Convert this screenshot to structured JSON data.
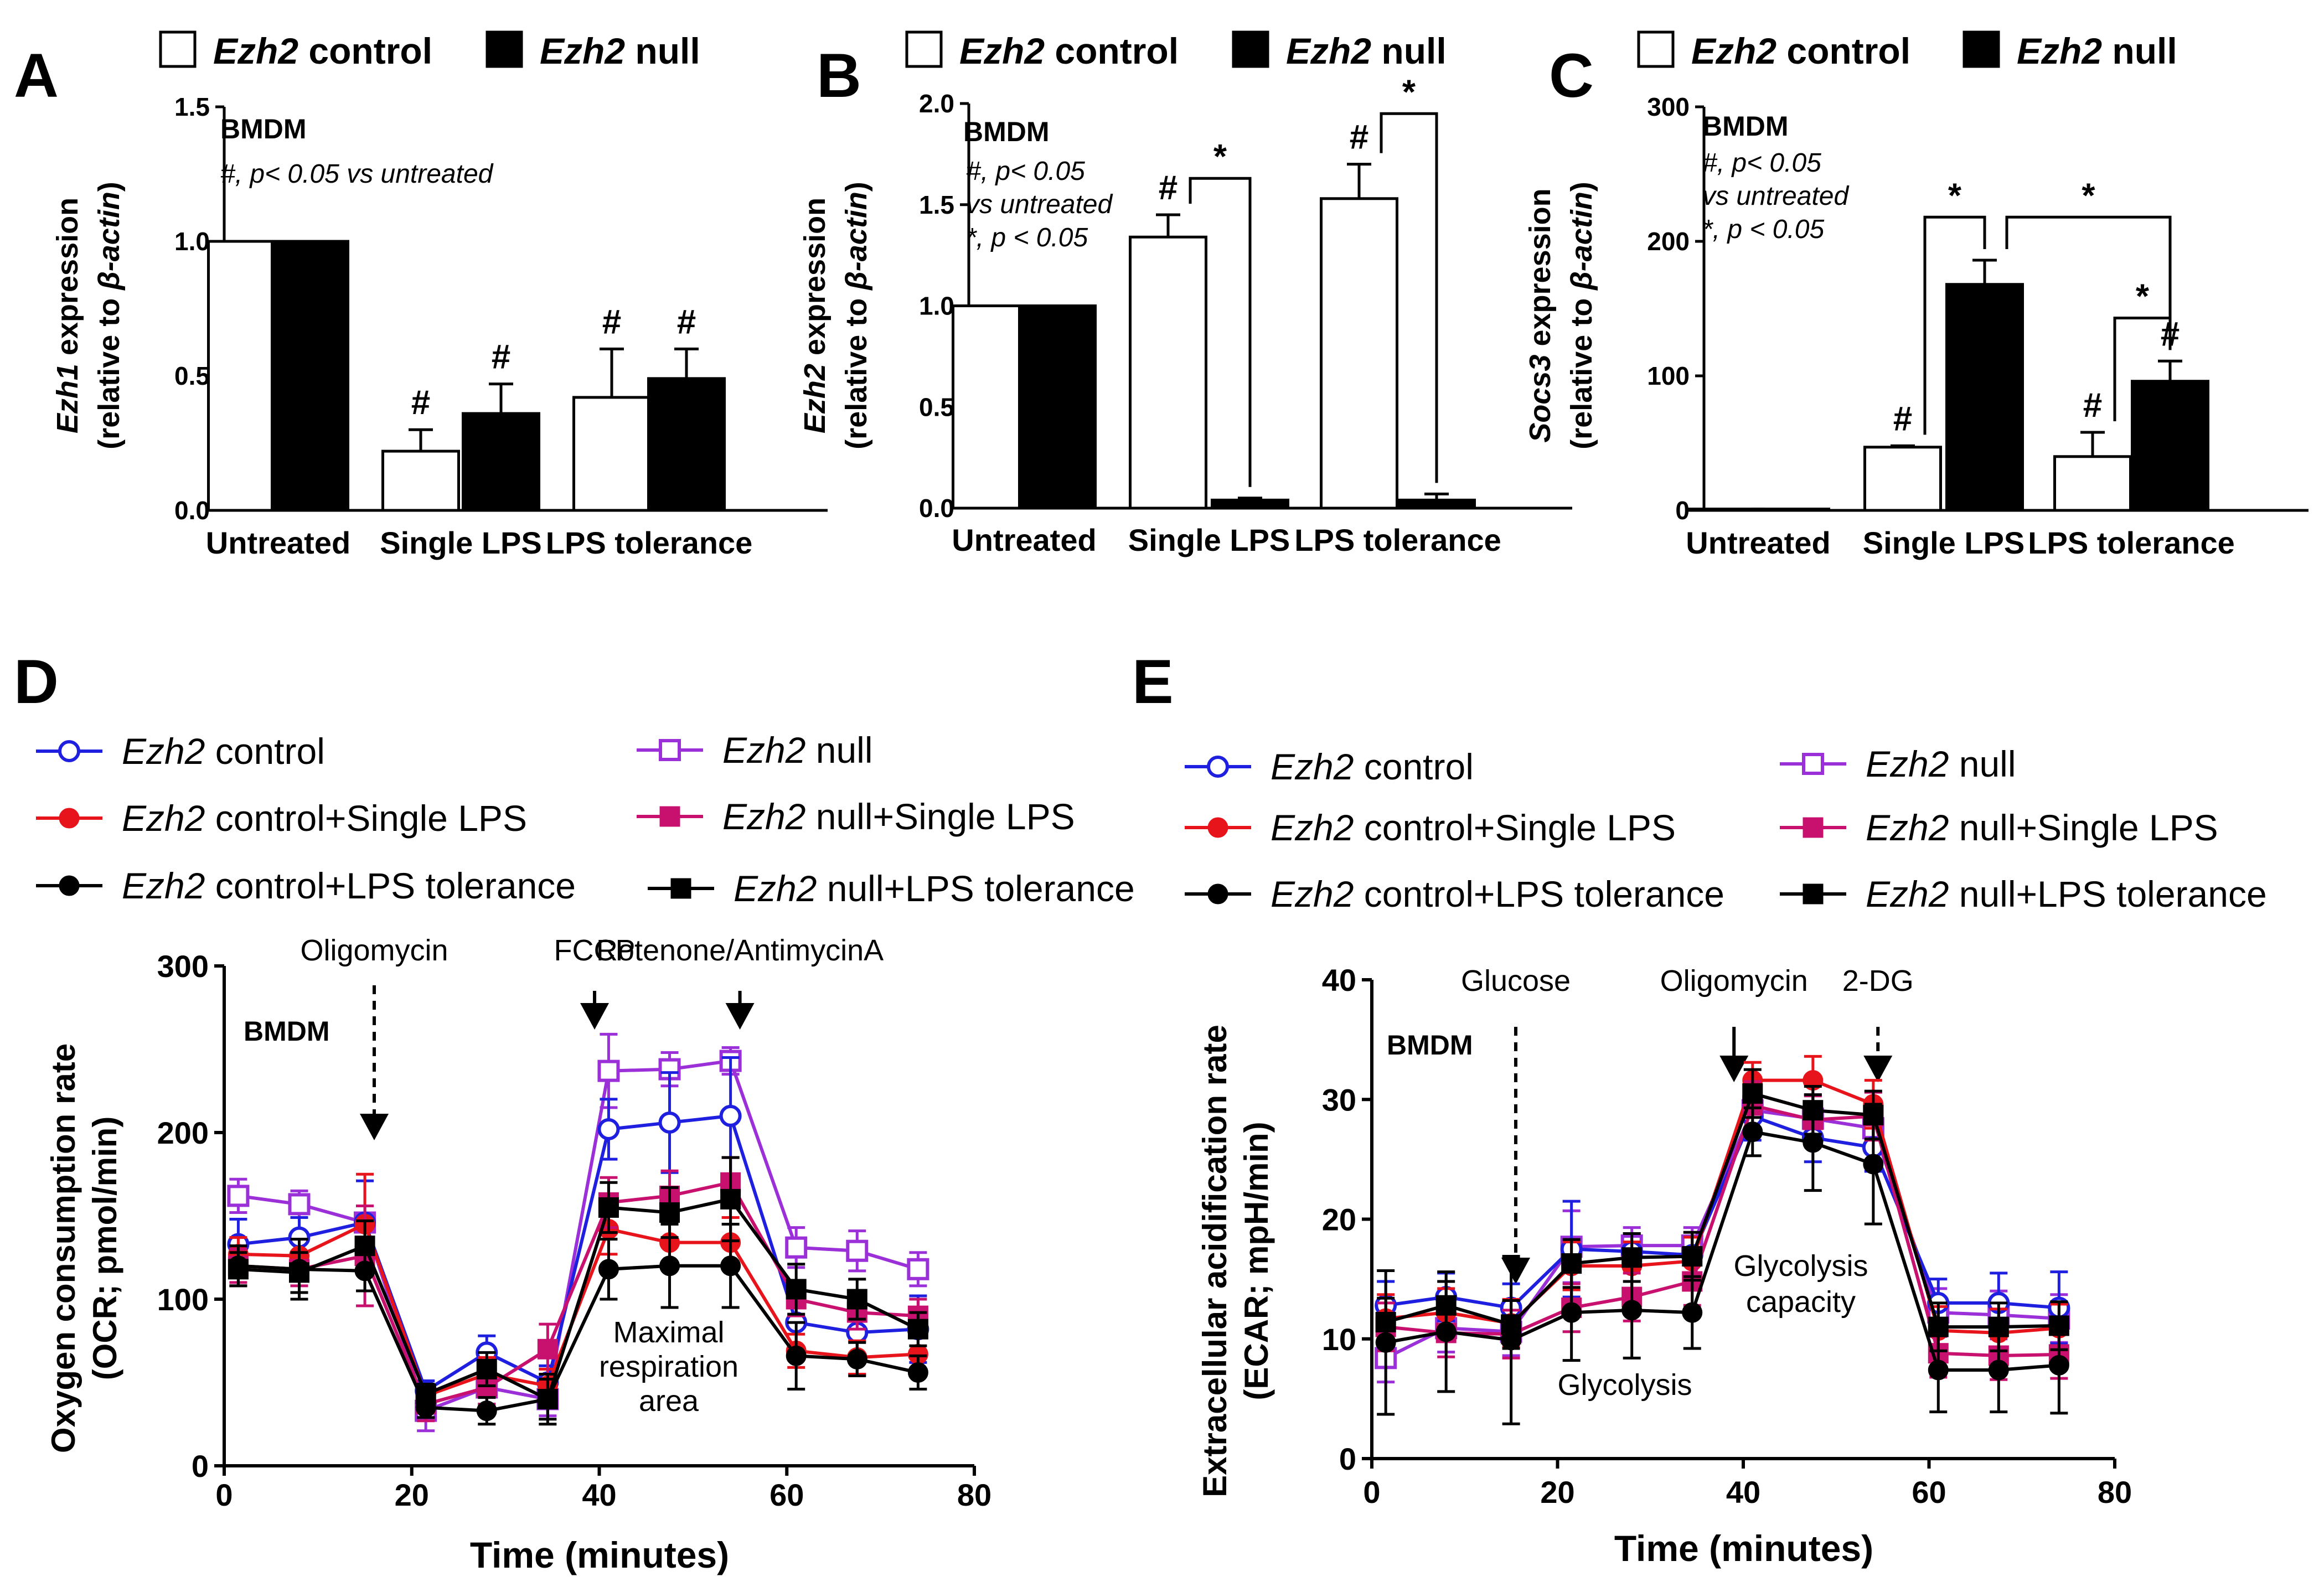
{
  "legend_top": {
    "gene": "Ezh2",
    "control": "control",
    "null": "null"
  },
  "chart_data": [
    {
      "panel": "A",
      "type": "bar",
      "ylabel_gene": "Ezh1",
      "ylabel_rest": " expression",
      "ylabel2_prefix": "(relative to ",
      "ylabel2_gene": "β-actin",
      "ylabel2_suffix": ")",
      "ylim": [
        0,
        1.5
      ],
      "yticks": [
        "0.0",
        "0.5",
        "1.0",
        "1.5"
      ],
      "tick_values": [
        0,
        0.5,
        1.0,
        1.5
      ],
      "categories": [
        "Untreated",
        "Single LPS",
        "LPS tolerance"
      ],
      "series": [
        {
          "name": "Ezh2 control",
          "values": [
            1.0,
            0.22,
            0.42
          ],
          "errors": [
            0,
            0.08,
            0.18
          ]
        },
        {
          "name": "Ezh2 null",
          "values": [
            1.0,
            0.36,
            0.49
          ],
          "errors": [
            0,
            0.11,
            0.11
          ]
        }
      ],
      "annot_title": "BMDM",
      "annot_lines": [
        "#, p< 0.05  vs untreated"
      ],
      "hash": "#",
      "star": "*"
    },
    {
      "panel": "B",
      "type": "bar",
      "ylabel_gene": "Ezh2",
      "ylabel_rest": " expression",
      "ylabel2_prefix": "(relative to ",
      "ylabel2_gene": "β-actin",
      "ylabel2_suffix": ")",
      "ylim": [
        0,
        2.0
      ],
      "yticks": [
        "0.0",
        "0.5",
        "1.0",
        "1.5",
        "2.0"
      ],
      "tick_values": [
        0,
        0.5,
        1.0,
        1.5,
        2.0
      ],
      "categories": [
        "Untreated",
        "Single LPS",
        "LPS tolerance"
      ],
      "series": [
        {
          "name": "Ezh2 control",
          "values": [
            1.0,
            1.34,
            1.53
          ],
          "errors": [
            0,
            0.11,
            0.17
          ]
        },
        {
          "name": "Ezh2 null",
          "values": [
            1.0,
            0.04,
            0.04
          ],
          "errors": [
            0,
            0.01,
            0.03
          ]
        }
      ],
      "annot_title": "BMDM",
      "annot_lines": [
        "#, p< 0.05",
        "vs untreated",
        "*, p < 0.05"
      ],
      "hash": "#",
      "star": "*"
    },
    {
      "panel": "C",
      "type": "bar",
      "ylabel_gene": "Socs3",
      "ylabel_rest": " expression",
      "ylabel2_prefix": "(relative to ",
      "ylabel2_gene": "β-actin",
      "ylabel2_suffix": ")",
      "ylim": [
        0,
        300
      ],
      "yticks": [
        "0",
        "100",
        "200",
        "300"
      ],
      "tick_values": [
        0,
        100,
        200,
        300
      ],
      "categories": [
        "Untreated",
        "Single LPS",
        "LPS tolerance"
      ],
      "series": [
        {
          "name": "Ezh2 control",
          "values": [
            1,
            47,
            40
          ],
          "errors": [
            0,
            1,
            18
          ]
        },
        {
          "name": "Ezh2 null",
          "values": [
            1,
            168,
            96
          ],
          "errors": [
            0,
            18,
            15
          ]
        }
      ],
      "annot_title": "BMDM",
      "annot_lines": [
        "#, p< 0.05",
        "vs untreated",
        "*, p < 0.05"
      ],
      "hash": "#",
      "star": "*"
    },
    {
      "panel": "D",
      "type": "line",
      "ylabel": "Oxygen consumption rate",
      "ylabel2": "(OCR; pmol/min)",
      "xlabel": "Time (minutes)",
      "xlim": [
        0,
        80
      ],
      "ylim": [
        0,
        300
      ],
      "xticks": [
        "0",
        "20",
        "40",
        "60",
        "80"
      ],
      "xtick_values": [
        0,
        20,
        40,
        60,
        80
      ],
      "yticks": [
        "0",
        "100",
        "200",
        "300"
      ],
      "ytick_values": [
        0,
        100,
        200,
        300
      ],
      "x": [
        1.5,
        8,
        15,
        21.5,
        28,
        34.5,
        41,
        47.5,
        54,
        61,
        67.5,
        74
      ],
      "series": [
        {
          "name": "Ezh2 control",
          "values": [
            133,
            137,
            146,
            45,
            68,
            50,
            202,
            206,
            210,
            86,
            80,
            82
          ],
          "errors": [
            15,
            12,
            25,
            6,
            10,
            10,
            18,
            30,
            35,
            15,
            25,
            20
          ]
        },
        {
          "name": "Ezh2 control+Single LPS",
          "values": [
            127,
            126,
            145,
            42,
            55,
            48,
            142,
            134,
            134,
            69,
            65,
            67
          ],
          "errors": [
            10,
            10,
            30,
            6,
            10,
            10,
            15,
            15,
            15,
            10,
            10,
            10
          ]
        },
        {
          "name": "Ezh2 control+LPS tolerance",
          "values": [
            120,
            118,
            117,
            35,
            33,
            40,
            118,
            120,
            120,
            66,
            64,
            56
          ],
          "errors": [
            12,
            18,
            12,
            6,
            8,
            15,
            18,
            25,
            25,
            20,
            10,
            10
          ]
        },
        {
          "name": "Ezh2 null",
          "values": [
            162,
            157,
            146,
            33,
            47,
            40,
            237,
            238,
            243,
            131,
            129,
            118
          ],
          "errors": [
            10,
            8,
            10,
            12,
            10,
            10,
            22,
            10,
            8,
            12,
            12,
            10
          ]
        },
        {
          "name": "Ezh2 null+Single LPS",
          "values": [
            120,
            118,
            126,
            37,
            47,
            70,
            158,
            162,
            170,
            100,
            92,
            90
          ],
          "errors": [
            10,
            10,
            30,
            10,
            10,
            15,
            15,
            15,
            15,
            10,
            10,
            10
          ]
        },
        {
          "name": "Ezh2 null+LPS tolerance",
          "values": [
            118,
            116,
            132,
            43,
            58,
            40,
            155,
            152,
            160,
            106,
            100,
            82
          ],
          "errors": [
            10,
            12,
            15,
            6,
            10,
            12,
            15,
            15,
            25,
            15,
            12,
            10
          ]
        }
      ],
      "arrows": [
        {
          "label": "Oligomycin",
          "x": 16,
          "style": "dashed"
        },
        {
          "label": "FCCP",
          "x": 39.5,
          "style": "solid"
        },
        {
          "label": "Rotenone/AntimycinA",
          "x": 55,
          "style": "solid"
        }
      ],
      "notes": [
        "Maximal",
        "respiration",
        "area"
      ],
      "bmdm": "BMDM"
    },
    {
      "panel": "E",
      "type": "line",
      "ylabel": "Extracellular acidification rate",
      "ylabel2": "(ECAR; mpH/min)",
      "xlabel": "Time (minutes)",
      "xlim": [
        0,
        80
      ],
      "ylim": [
        0,
        40
      ],
      "xticks": [
        "0",
        "20",
        "40",
        "60",
        "80"
      ],
      "xtick_values": [
        0,
        20,
        40,
        60,
        80
      ],
      "yticks": [
        "0",
        "10",
        "20",
        "30",
        "40"
      ],
      "ytick_values": [
        0,
        10,
        20,
        30,
        40
      ],
      "x": [
        1.5,
        8,
        15,
        21.5,
        28,
        34.5,
        41,
        47.5,
        54,
        61,
        67.5,
        74
      ],
      "series": [
        {
          "name": "Ezh2 control",
          "values": [
            12.8,
            13.5,
            12.6,
            17.5,
            17.3,
            17.0,
            28.6,
            26.8,
            26.0,
            13.0,
            13.0,
            12.6
          ],
          "errors": [
            2,
            2,
            2,
            4,
            1.5,
            1.5,
            2,
            2,
            2,
            2,
            2.5,
            3
          ]
        },
        {
          "name": "Ezh2 control+Single LPS",
          "values": [
            11.7,
            12.2,
            11.3,
            16.1,
            16.1,
            16.5,
            31.6,
            31.6,
            29.6,
            10.7,
            10.5,
            10.9
          ],
          "errors": [
            2,
            2,
            2,
            2,
            2,
            2,
            1.5,
            2,
            2,
            2,
            2,
            2
          ]
        },
        {
          "name": "Ezh2 control+LPS tolerance",
          "values": [
            9.7,
            10.6,
            9.9,
            12.2,
            12.4,
            12.2,
            27.3,
            26.4,
            24.6,
            7.4,
            7.4,
            7.8
          ],
          "errors": [
            6,
            5,
            7,
            4,
            4,
            3,
            2,
            4,
            5,
            3.5,
            3.5,
            4
          ]
        },
        {
          "name": "Ezh2 null",
          "values": [
            8.4,
            10.9,
            10.6,
            17.7,
            17.8,
            17.8,
            29.1,
            28.4,
            27.6,
            12.2,
            12.0,
            11.7
          ],
          "errors": [
            2,
            2,
            2,
            3,
            1.5,
            1.5,
            1.5,
            2,
            2,
            2,
            2,
            2
          ]
        },
        {
          "name": "Ezh2 null+Single LPS",
          "values": [
            11.0,
            10.5,
            10.4,
            12.6,
            13.5,
            14.8,
            29.5,
            28.3,
            28.6,
            8.8,
            8.6,
            8.7
          ],
          "errors": [
            2,
            2,
            2,
            2,
            2,
            2,
            2,
            2,
            2,
            2,
            2,
            2
          ]
        },
        {
          "name": "Ezh2 null+LPS tolerance",
          "values": [
            11.4,
            12.8,
            11.2,
            16.3,
            16.8,
            16.9,
            30.5,
            29.1,
            28.7,
            11.0,
            11.0,
            11.1
          ],
          "errors": [
            2,
            2,
            2,
            2,
            2,
            2,
            2,
            2,
            2,
            2,
            2,
            2
          ]
        }
      ],
      "arrows": [
        {
          "label": "Glucose",
          "x": 15.5,
          "style": "dashed"
        },
        {
          "label": "Oligomycin",
          "x": 39,
          "style": "solid"
        },
        {
          "label": "2-DG",
          "x": 54.5,
          "style": "dashed"
        }
      ],
      "notes": [
        "Glycolysis",
        "Glycolysis",
        "capacity"
      ],
      "bmdm": "BMDM"
    }
  ],
  "line_legend": [
    {
      "gene": "Ezh2",
      "suffix": " control",
      "color": "#1f1fe0",
      "marker": "open-circle"
    },
    {
      "gene": "Ezh2",
      "suffix": " control+Single LPS",
      "color": "#e8141c",
      "marker": "filled-circle"
    },
    {
      "gene": "Ezh2",
      "suffix": " control+LPS tolerance",
      "color": "#000000",
      "marker": "filled-circle"
    },
    {
      "gene": "Ezh2",
      "suffix": " null",
      "color": "#9b30d9",
      "marker": "open-square"
    },
    {
      "gene": "Ezh2",
      "suffix": " null+Single LPS",
      "color": "#c8106e",
      "marker": "filled-square"
    },
    {
      "gene": "Ezh2",
      "suffix": " null+LPS tolerance",
      "color": "#000000",
      "marker": "filled-square"
    }
  ]
}
